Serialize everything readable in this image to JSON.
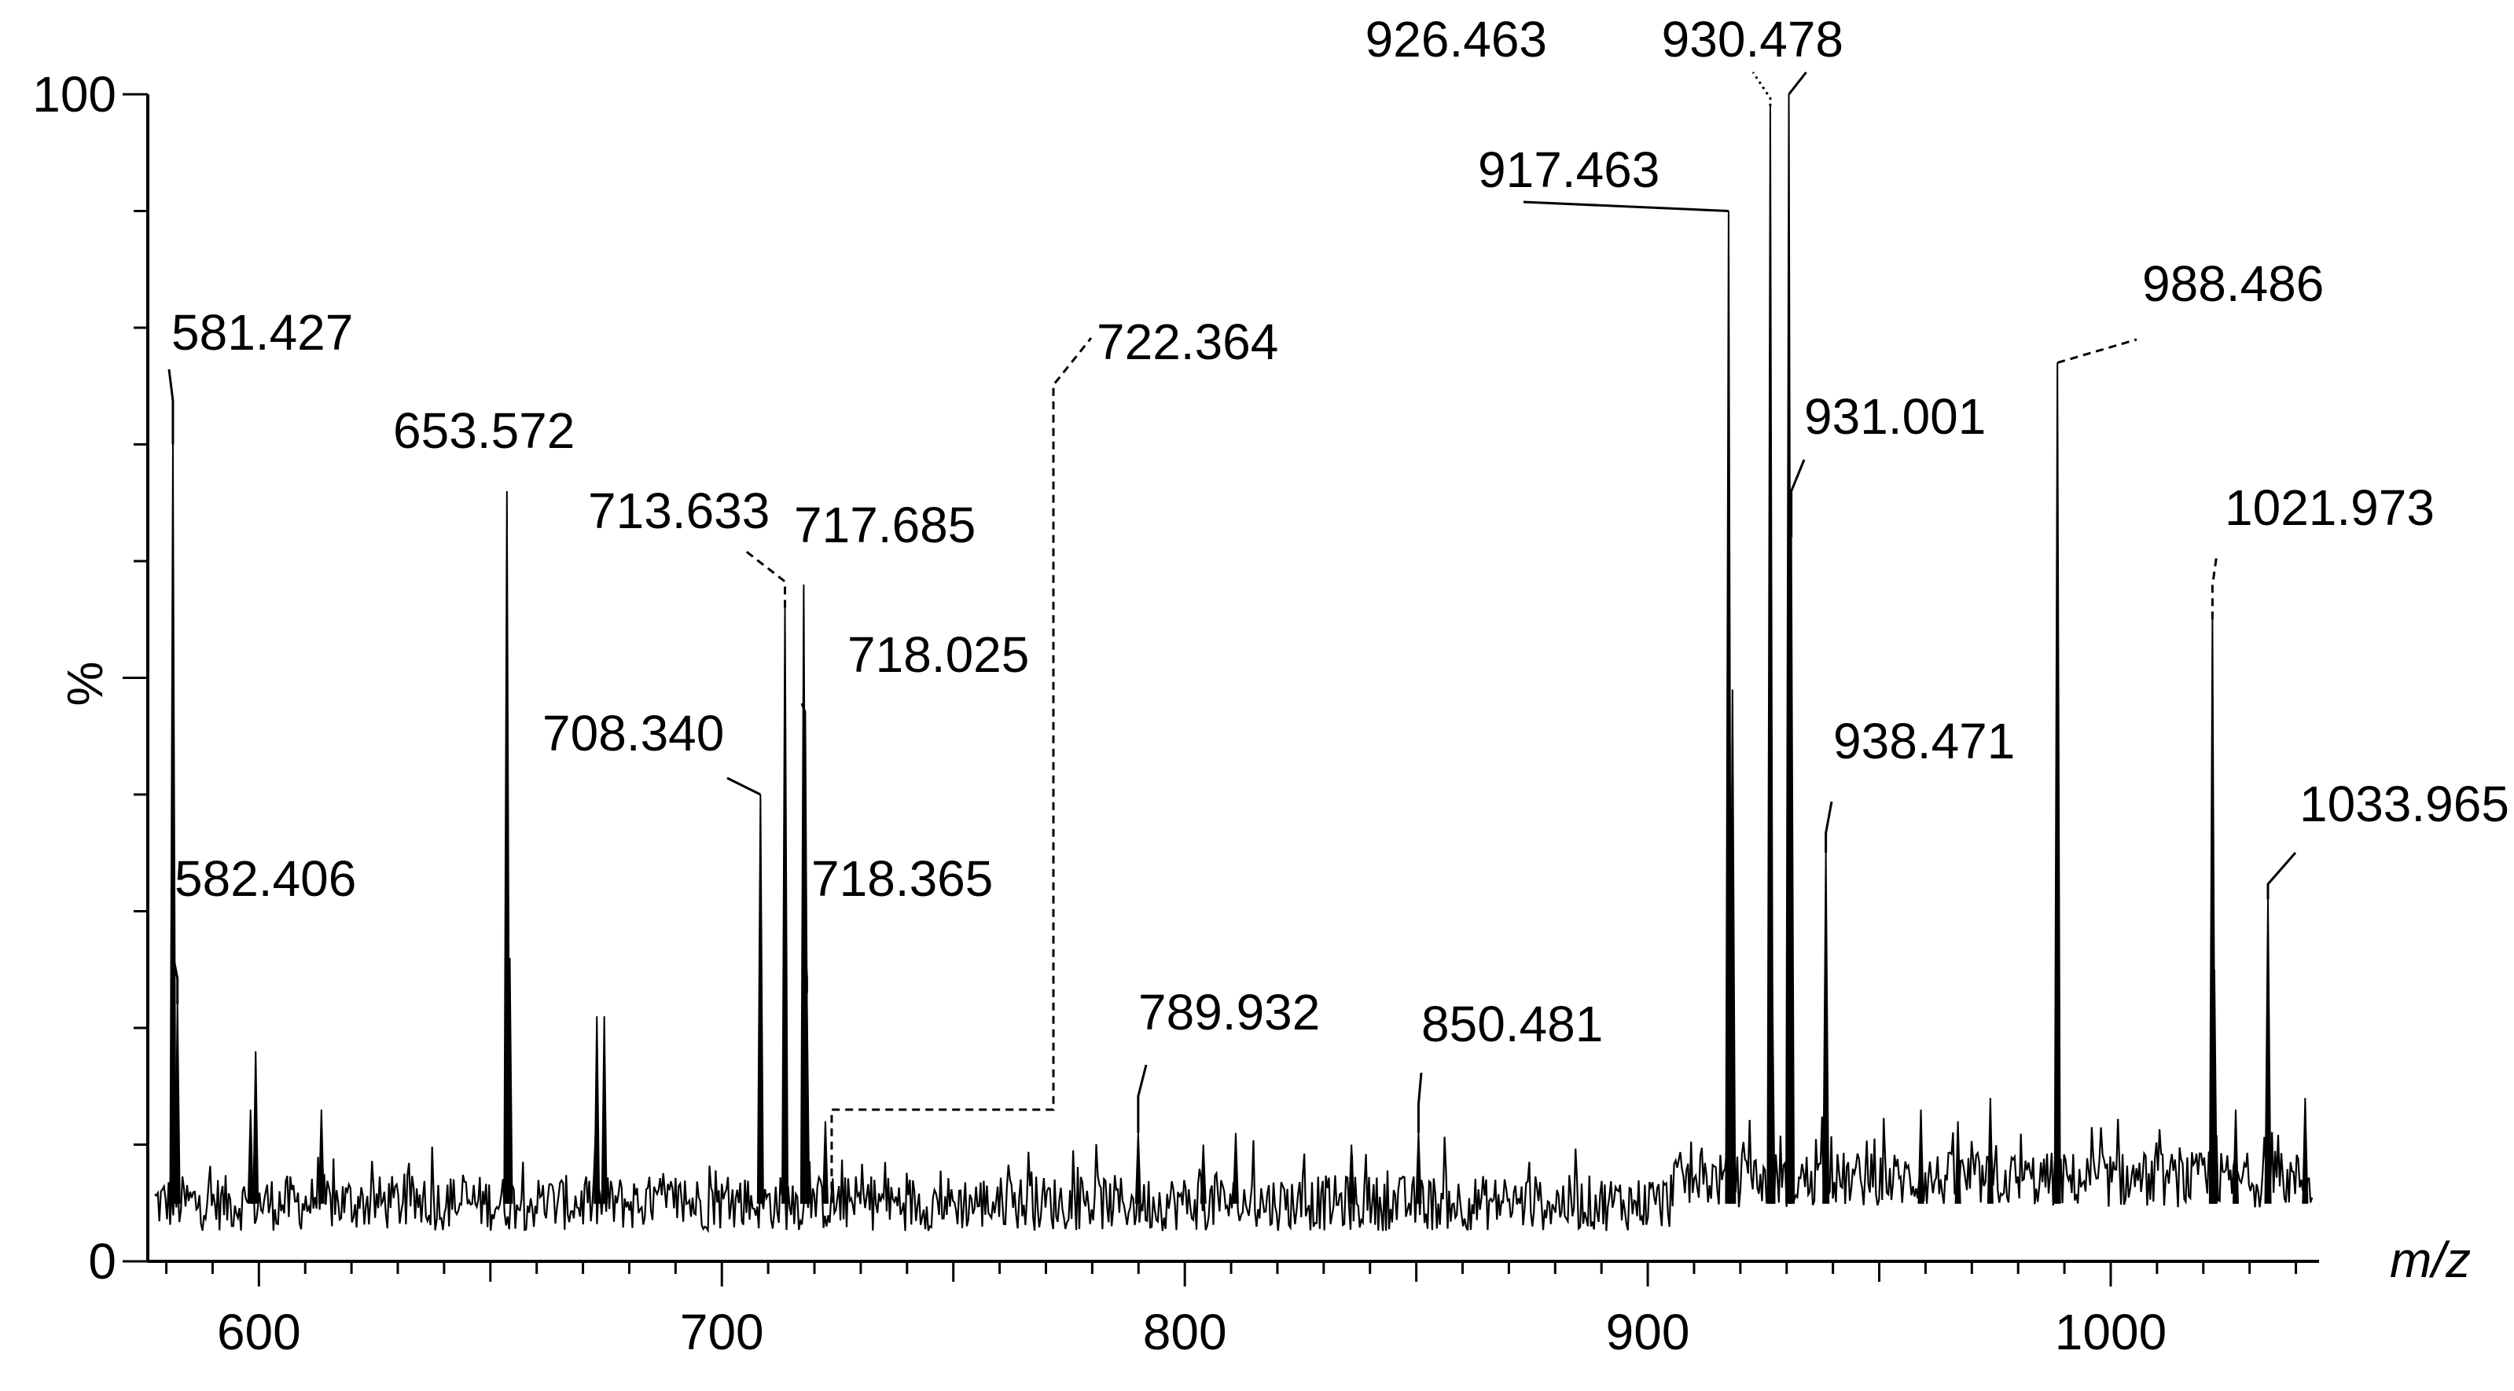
{
  "chart_data": {
    "type": "line",
    "title": "",
    "xlabel": "m/z",
    "ylabel": "%",
    "xlim": [
      576,
      1045
    ],
    "ylim": [
      0,
      100
    ],
    "grid": false,
    "x_ticks_major": [
      600,
      700,
      800,
      900,
      1000
    ],
    "x_ticks_minor_step": 10,
    "y_tick_labels": [
      0,
      100
    ],
    "y_ticks_minor_step": 10,
    "series": [
      {
        "type": "spectrum-peaks",
        "baseline": 5,
        "noise_amplitude": 4,
        "points": [
          {
            "x": 581.427,
            "y": 70
          },
          {
            "x": 582.406,
            "y": 22
          },
          {
            "x": 599.3,
            "y": 18
          },
          {
            "x": 598.2,
            "y": 13
          },
          {
            "x": 613.5,
            "y": 13
          },
          {
            "x": 653.572,
            "y": 66
          },
          {
            "x": 654.2,
            "y": 26
          },
          {
            "x": 673.0,
            "y": 21
          },
          {
            "x": 674.6,
            "y": 21
          },
          {
            "x": 708.34,
            "y": 40
          },
          {
            "x": 713.633,
            "y": 56
          },
          {
            "x": 717.685,
            "y": 58
          },
          {
            "x": 718.025,
            "y": 47
          },
          {
            "x": 718.365,
            "y": 23
          },
          {
            "x": 722.364,
            "y": 12
          },
          {
            "x": 789.932,
            "y": 11
          },
          {
            "x": 804.0,
            "y": 10
          },
          {
            "x": 811.0,
            "y": 11
          },
          {
            "x": 836.0,
            "y": 10
          },
          {
            "x": 850.481,
            "y": 11
          },
          {
            "x": 917.463,
            "y": 90
          },
          {
            "x": 918.3,
            "y": 49
          },
          {
            "x": 926.463,
            "y": 99
          },
          {
            "x": 926.9,
            "y": 24
          },
          {
            "x": 930.478,
            "y": 100
          },
          {
            "x": 931.001,
            "y": 62
          },
          {
            "x": 938.471,
            "y": 35
          },
          {
            "x": 959.0,
            "y": 13
          },
          {
            "x": 967.0,
            "y": 12
          },
          {
            "x": 974.0,
            "y": 14
          },
          {
            "x": 988.486,
            "y": 77
          },
          {
            "x": 1021.973,
            "y": 55
          },
          {
            "x": 1022.4,
            "y": 25
          },
          {
            "x": 1027.0,
            "y": 13
          },
          {
            "x": 1033.965,
            "y": 31
          },
          {
            "x": 1042.0,
            "y": 14
          }
        ]
      }
    ],
    "annotations": [
      {
        "text": "581.427",
        "x": 581.427,
        "y": 70
      },
      {
        "text": "582.406",
        "x": 582.406,
        "y": 22
      },
      {
        "text": "653.572",
        "x": 653.572,
        "y": 66
      },
      {
        "text": "708.340",
        "x": 708.34,
        "y": 40
      },
      {
        "text": "713.633",
        "x": 713.633,
        "y": 56
      },
      {
        "text": "717.685",
        "x": 717.685,
        "y": 58
      },
      {
        "text": "718.025",
        "x": 718.025,
        "y": 47
      },
      {
        "text": "718.365",
        "x": 718.365,
        "y": 23
      },
      {
        "text": "722.364",
        "x": 722.364,
        "y": 12
      },
      {
        "text": "789.932",
        "x": 789.932,
        "y": 11
      },
      {
        "text": "850.481",
        "x": 850.481,
        "y": 11
      },
      {
        "text": "917.463",
        "x": 917.463,
        "y": 90
      },
      {
        "text": "926.463",
        "x": 926.463,
        "y": 99
      },
      {
        "text": "930.478",
        "x": 930.478,
        "y": 100
      },
      {
        "text": "931.001",
        "x": 931.001,
        "y": 62
      },
      {
        "text": "938.471",
        "x": 938.471,
        "y": 35
      },
      {
        "text": "988.486",
        "x": 988.486,
        "y": 77
      },
      {
        "text": "1021.973",
        "x": 1021.973,
        "y": 55
      },
      {
        "text": "1033.965",
        "x": 1033.965,
        "y": 31
      }
    ]
  }
}
